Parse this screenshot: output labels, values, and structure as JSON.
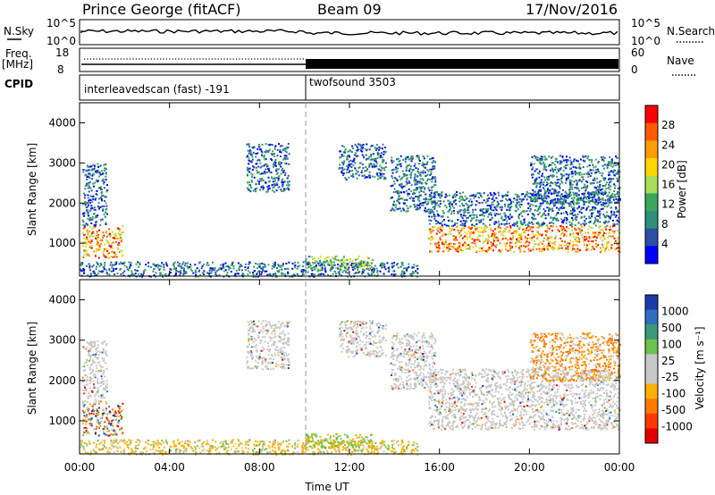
{
  "header": {
    "station": "Prince George (fitACF)",
    "beam": "Beam 09",
    "date": "17/Nov/2016"
  },
  "noise_panel": {
    "left_label": "N.Sky",
    "right_label": "N.Search",
    "left_ticks": [
      "10^5",
      "10^0"
    ],
    "right_ticks": [
      "10^5",
      "10^0"
    ]
  },
  "freq_panel": {
    "left_label_1": "Freq.",
    "left_label_2": "[MHz]",
    "left_ticks": [
      "18",
      "8"
    ],
    "right_label": "Nave",
    "right_ticks": [
      "60",
      "0"
    ]
  },
  "cpid": {
    "label": "CPID",
    "segments": [
      {
        "name": "interleavedscan (fast) -191",
        "start_hour": 0,
        "end_hour": 10
      },
      {
        "name": "twofsound 3503",
        "start_hour": 10,
        "end_hour": 24
      }
    ]
  },
  "x_axis": {
    "label": "Time UT",
    "ticks": [
      "00:00",
      "04:00",
      "08:00",
      "12:00",
      "16:00",
      "20:00",
      "00:00"
    ],
    "range_hours": [
      0,
      24
    ]
  },
  "chart_data": [
    {
      "type": "heatmap",
      "parameter": "power",
      "xlabel": "Time UT",
      "ylabel": "Slant Range [km]",
      "xlim": [
        0,
        24
      ],
      "ylim": [
        180,
        4500
      ],
      "y_ticks": [
        1000,
        2000,
        3000,
        4000
      ],
      "colorbar_label": "Power [dB]",
      "colorbar_ticks": [
        "28",
        "24",
        "20",
        "16",
        "12",
        "8",
        "4"
      ],
      "colorbar_colors": [
        "#ff0000",
        "#ff5a00",
        "#ff9c00",
        "#ffd700",
        "#a6e05a",
        "#3aa85a",
        "#2d8f7a",
        "#2a4fa5",
        "#0000ff"
      ],
      "scatter_regions": [
        {
          "t0": 0.1,
          "t1": 1.9,
          "r0": 650,
          "r1": 1450,
          "mode": "strong"
        },
        {
          "t0": 0.1,
          "t1": 1.2,
          "r0": 1450,
          "r1": 3000,
          "mode": "weak"
        },
        {
          "t0": 7.4,
          "t1": 9.3,
          "r0": 2300,
          "r1": 3500,
          "mode": "weak"
        },
        {
          "t0": 11.5,
          "t1": 13.6,
          "r0": 2600,
          "r1": 3500,
          "mode": "weak"
        },
        {
          "t0": 13.8,
          "t1": 15.8,
          "r0": 1800,
          "r1": 3200,
          "mode": "weak"
        },
        {
          "t0": 15.5,
          "t1": 24.0,
          "r0": 800,
          "r1": 1450,
          "mode": "strong"
        },
        {
          "t0": 15.5,
          "t1": 24.0,
          "r0": 1450,
          "r1": 2300,
          "mode": "weak"
        },
        {
          "t0": 20.0,
          "t1": 24.0,
          "r0": 2000,
          "r1": 3200,
          "mode": "weak"
        },
        {
          "t0": 0.0,
          "t1": 15.0,
          "r0": 180,
          "r1": 550,
          "mode": "weak"
        },
        {
          "t0": 10.0,
          "t1": 13.0,
          "r0": 350,
          "r1": 700,
          "mode": "moderate"
        }
      ]
    },
    {
      "type": "heatmap",
      "parameter": "velocity",
      "xlabel": "Time UT",
      "ylabel": "Slant Range [km]",
      "xlim": [
        0,
        24
      ],
      "ylim": [
        180,
        4500
      ],
      "y_ticks": [
        1000,
        2000,
        3000,
        4000
      ],
      "colorbar_label": "Velocity [m s⁻¹]",
      "colorbar_ticks": [
        "1000",
        "500",
        "100",
        "25",
        "-25",
        "-100",
        "-500",
        "-1000"
      ],
      "colorbar_colors": [
        "#1e3aa8",
        "#2e6fbf",
        "#3a9a7a",
        "#6ec24a",
        "#c8c8c8",
        "#c8c8c8",
        "#ffb000",
        "#ff7a00",
        "#ff3a00",
        "#e00000"
      ],
      "scatter_regions": [
        {
          "t0": 0.1,
          "t1": 1.9,
          "r0": 650,
          "r1": 1450,
          "mode": "mixed"
        },
        {
          "t0": 0.1,
          "t1": 1.2,
          "r0": 1450,
          "r1": 3000,
          "mode": "grey"
        },
        {
          "t0": 7.4,
          "t1": 9.3,
          "r0": 2300,
          "r1": 3500,
          "mode": "grey"
        },
        {
          "t0": 11.5,
          "t1": 13.6,
          "r0": 2600,
          "r1": 3500,
          "mode": "grey"
        },
        {
          "t0": 13.8,
          "t1": 15.8,
          "r0": 1800,
          "r1": 3200,
          "mode": "grey"
        },
        {
          "t0": 15.5,
          "t1": 24.0,
          "r0": 800,
          "r1": 1450,
          "mode": "grey"
        },
        {
          "t0": 15.5,
          "t1": 24.0,
          "r0": 1450,
          "r1": 2300,
          "mode": "grey"
        },
        {
          "t0": 20.0,
          "t1": 24.0,
          "r0": 2000,
          "r1": 3200,
          "mode": "orange"
        },
        {
          "t0": 0.0,
          "t1": 15.0,
          "r0": 180,
          "r1": 550,
          "mode": "yellow"
        },
        {
          "t0": 10.0,
          "t1": 13.0,
          "r0": 350,
          "r1": 700,
          "mode": "green"
        }
      ]
    }
  ]
}
